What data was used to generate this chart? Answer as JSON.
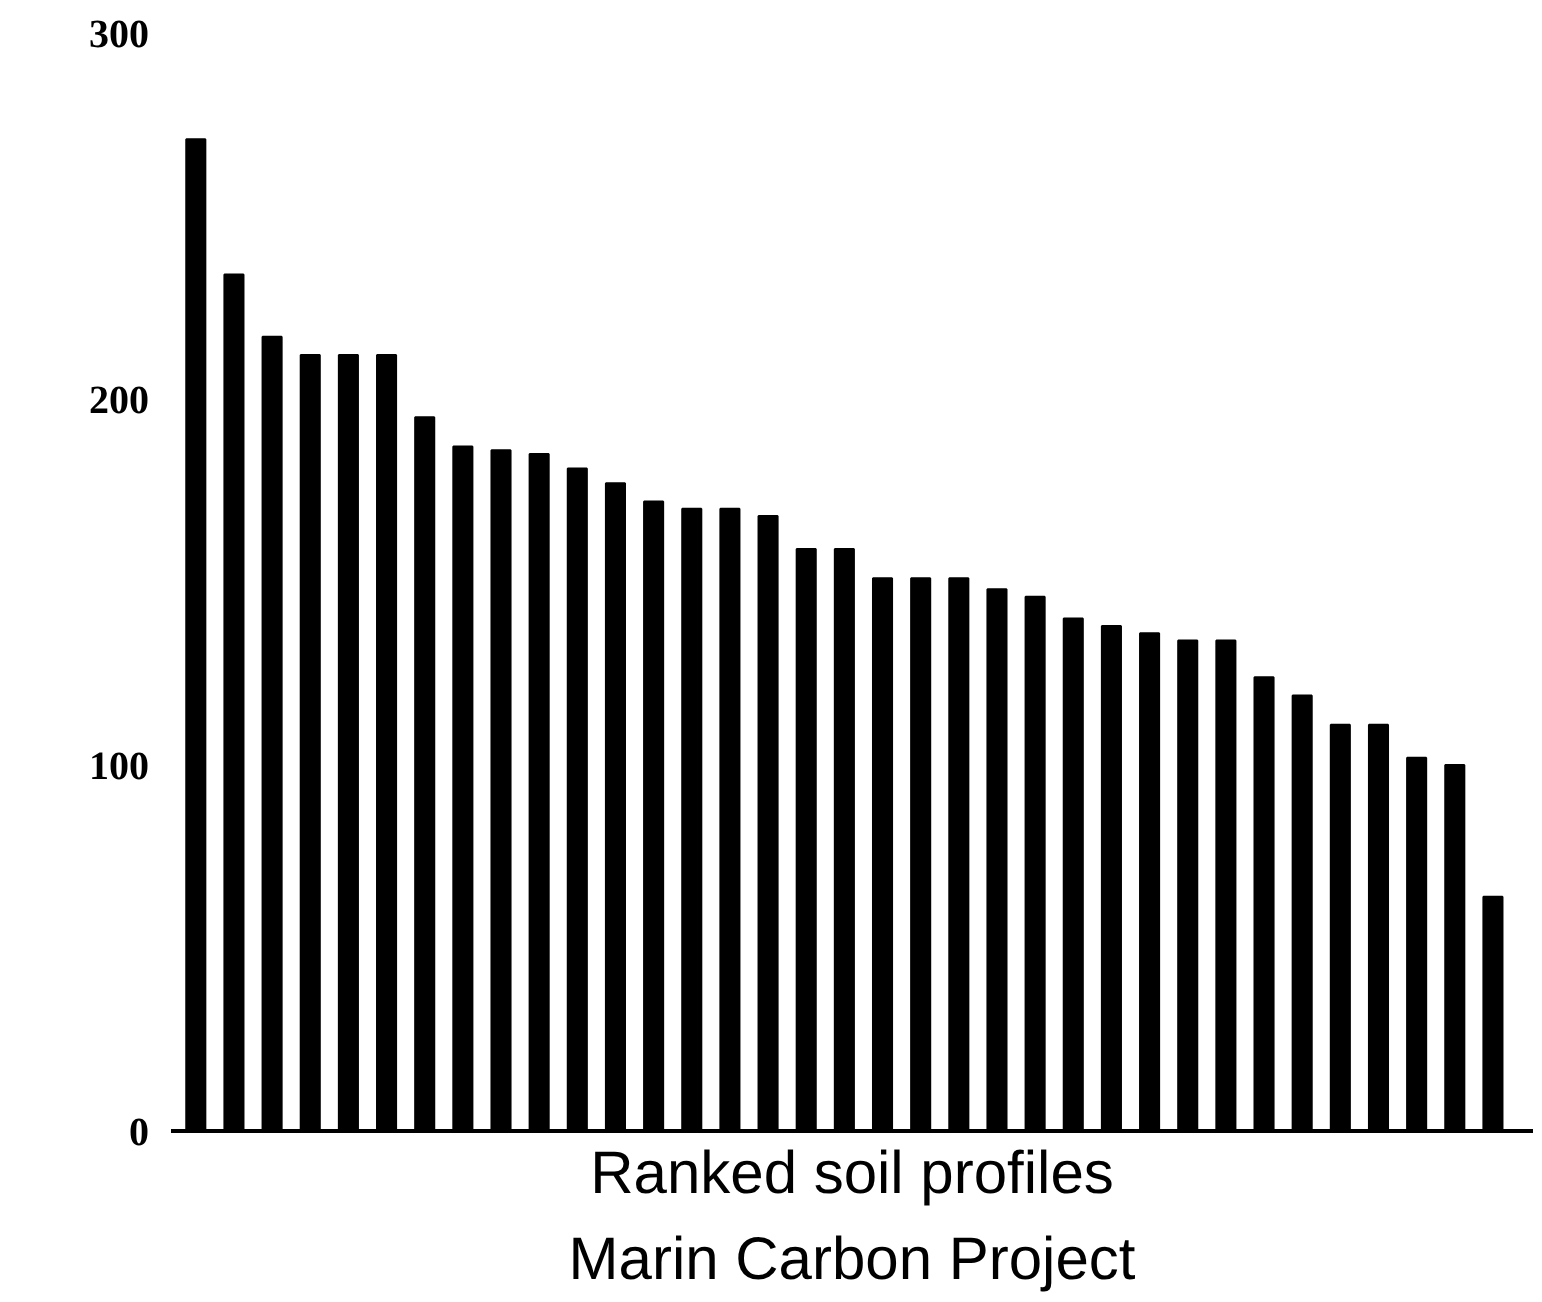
{
  "chart_data": {
    "type": "bar",
    "xlabel": "Ranked soil profiles",
    "annotations": [
      "Marin Carbon Project"
    ],
    "categories": [
      null,
      null,
      null,
      null,
      null,
      null,
      null,
      null,
      null,
      null,
      null,
      null,
      null,
      null,
      null,
      null,
      null,
      null,
      null,
      null,
      null,
      null,
      null,
      null,
      null,
      null,
      null,
      null,
      null,
      null,
      null,
      null,
      null,
      null,
      null
    ],
    "values": [
      271,
      234,
      217,
      212,
      212,
      212,
      195,
      187,
      186,
      185,
      181,
      177,
      172,
      170,
      170,
      168,
      159,
      159,
      151,
      151,
      151,
      148,
      146,
      140,
      138,
      136,
      134,
      134,
      124,
      119,
      111,
      111,
      102,
      100,
      64
    ],
    "color": "#000000",
    "ylim": [
      0,
      300
    ],
    "yticks": [
      0,
      100,
      200,
      300
    ],
    "grid": false
  }
}
